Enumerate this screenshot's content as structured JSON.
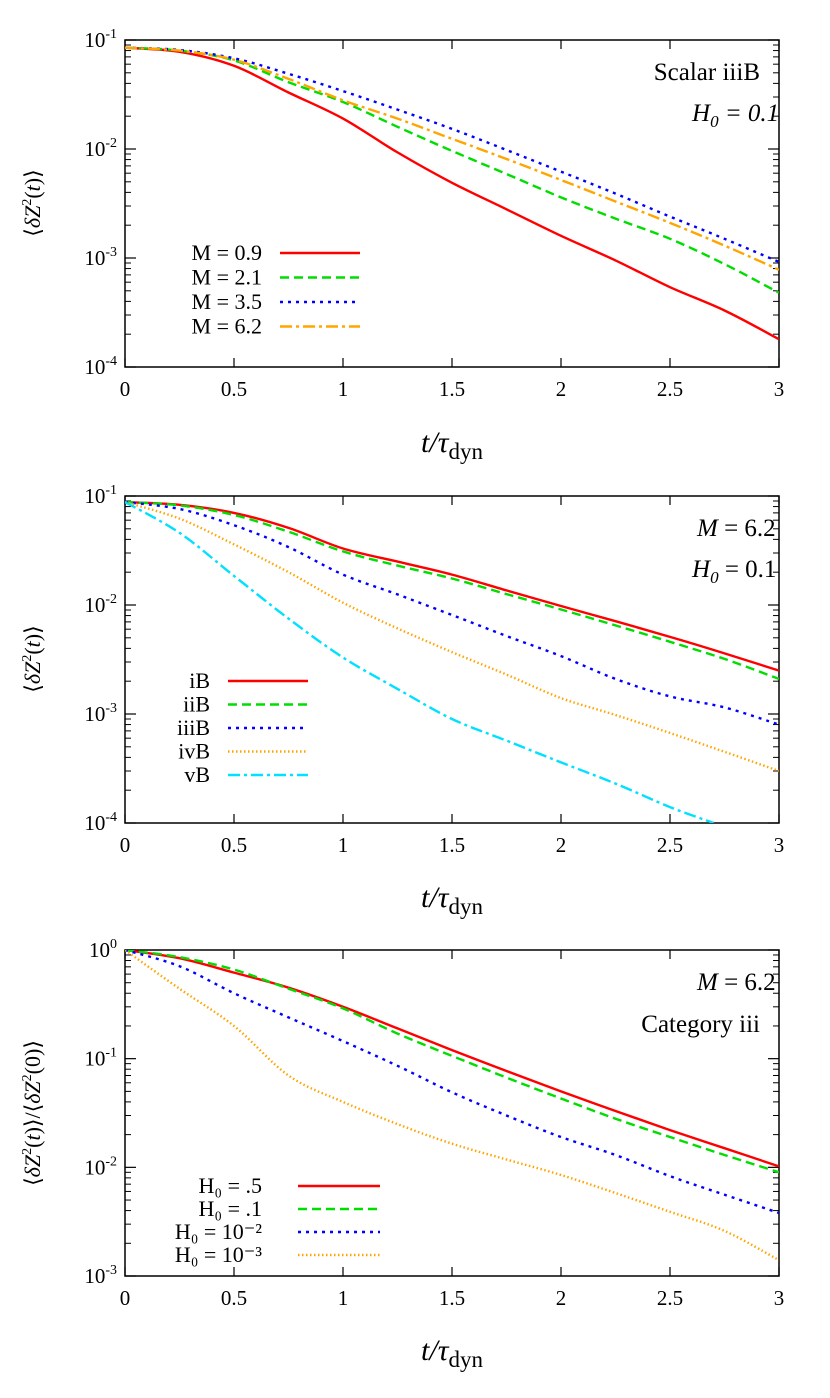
{
  "chart_data": [
    {
      "type": "line",
      "yscale": "log",
      "xlim": [
        0,
        3
      ],
      "ylim": [
        0.0001,
        0.1
      ],
      "xticks": [
        "0",
        "0.5",
        "1",
        "1.5",
        "2",
        "2.5",
        "3"
      ],
      "ylabel": "⟨δZ²(t)⟩",
      "xlabel": "t/τdyn",
      "annotation": [
        "Scalar iiiB",
        "H₀ = 0.1"
      ],
      "legend_position": "bottom-left",
      "series": [
        {
          "name": "M = 0.9",
          "color": "#ff0000",
          "dash": "solid",
          "x": [
            0,
            0.25,
            0.5,
            0.75,
            1.0,
            1.25,
            1.5,
            1.75,
            2.0,
            2.25,
            2.5,
            2.75,
            3.0
          ],
          "y": [
            0.085,
            0.078,
            0.058,
            0.033,
            0.019,
            0.0093,
            0.0049,
            0.0028,
            0.0016,
            0.00095,
            0.00054,
            0.00033,
            0.00018
          ]
        },
        {
          "name": "M = 2.1",
          "color": "#00dd00",
          "dash": "dashed",
          "x": [
            0,
            0.25,
            0.5,
            0.75,
            1.0,
            1.25,
            1.5,
            1.75,
            2.0,
            2.25,
            2.5,
            2.75,
            3.0
          ],
          "y": [
            0.085,
            0.08,
            0.065,
            0.041,
            0.027,
            0.016,
            0.0096,
            0.0059,
            0.0036,
            0.0023,
            0.0015,
            0.00088,
            0.00048
          ]
        },
        {
          "name": "M = 3.5",
          "color": "#0000ff",
          "dash": "dotted",
          "x": [
            0,
            0.25,
            0.5,
            0.75,
            1.0,
            1.25,
            1.5,
            1.75,
            2.0,
            2.25,
            2.5,
            2.75,
            3.0
          ],
          "y": [
            0.085,
            0.081,
            0.068,
            0.049,
            0.034,
            0.023,
            0.0153,
            0.0098,
            0.0062,
            0.0039,
            0.0024,
            0.0015,
            0.00092
          ]
        },
        {
          "name": "M = 6.2",
          "color": "#ffa500",
          "dash": "dashdot",
          "x": [
            0,
            0.25,
            0.5,
            0.75,
            1.0,
            1.25,
            1.5,
            1.75,
            2.0,
            2.25,
            2.5,
            2.75,
            3.0
          ],
          "y": [
            0.085,
            0.08,
            0.066,
            0.044,
            0.028,
            0.019,
            0.0124,
            0.0081,
            0.0052,
            0.0033,
            0.0021,
            0.0013,
            0.00078
          ]
        }
      ]
    },
    {
      "type": "line",
      "yscale": "log",
      "xlim": [
        0,
        3
      ],
      "ylim": [
        0.0001,
        0.1
      ],
      "xticks": [
        "0",
        "0.5",
        "1",
        "1.5",
        "2",
        "2.5",
        "3"
      ],
      "ylabel": "⟨δZ²(t)⟩",
      "xlabel": "t/τdyn",
      "annotation": [
        "M = 6.2",
        "H₀ = 0.1"
      ],
      "legend_position": "bottom-left",
      "series": [
        {
          "name": "iB",
          "color": "#ff0000",
          "dash": "solid",
          "x": [
            0,
            0.25,
            0.5,
            0.75,
            1.0,
            1.25,
            1.5,
            1.75,
            2.0,
            2.25,
            2.5,
            2.75,
            3.0
          ],
          "y": [
            0.088,
            0.083,
            0.07,
            0.051,
            0.033,
            0.025,
            0.019,
            0.0136,
            0.0098,
            0.0071,
            0.0051,
            0.0036,
            0.0025
          ]
        },
        {
          "name": "iiB",
          "color": "#00dd00",
          "dash": "dashed",
          "x": [
            0,
            0.25,
            0.5,
            0.75,
            1.0,
            1.25,
            1.5,
            1.75,
            2.0,
            2.25,
            2.5,
            2.75,
            3.0
          ],
          "y": [
            0.088,
            0.082,
            0.067,
            0.047,
            0.031,
            0.023,
            0.0175,
            0.0126,
            0.0091,
            0.0065,
            0.0046,
            0.0032,
            0.0021
          ]
        },
        {
          "name": "iiiB",
          "color": "#0000ff",
          "dash": "dotted",
          "x": [
            0,
            0.25,
            0.5,
            0.75,
            1.0,
            1.25,
            1.5,
            1.75,
            2.0,
            2.25,
            2.5,
            2.75,
            3.0
          ],
          "y": [
            0.088,
            0.076,
            0.054,
            0.034,
            0.019,
            0.0125,
            0.0081,
            0.0052,
            0.0034,
            0.0021,
            0.00145,
            0.00115,
            0.0008
          ]
        },
        {
          "name": "ivB",
          "color": "#ffa500",
          "dash": "finedot",
          "x": [
            0,
            0.25,
            0.5,
            0.75,
            1.0,
            1.25,
            1.5,
            1.75,
            2.0,
            2.25,
            2.5,
            2.75,
            3.0
          ],
          "y": [
            0.088,
            0.062,
            0.036,
            0.02,
            0.0105,
            0.0061,
            0.0037,
            0.0023,
            0.0014,
            0.00098,
            0.00067,
            0.00045,
            0.0003
          ]
        },
        {
          "name": "vB",
          "color": "#00e0ff",
          "dash": "dashdot",
          "x": [
            0,
            0.25,
            0.5,
            0.75,
            1.0,
            1.25,
            1.5,
            1.75,
            2.0,
            2.25,
            2.5,
            2.7
          ],
          "y": [
            0.088,
            0.046,
            0.0185,
            0.0075,
            0.0033,
            0.0017,
            0.0009,
            0.00057,
            0.00036,
            0.00023,
            0.00014,
            0.0001
          ]
        }
      ]
    },
    {
      "type": "line",
      "yscale": "log",
      "xlim": [
        0,
        3
      ],
      "ylim": [
        0.001,
        1
      ],
      "xticks": [
        "0",
        "0.5",
        "1",
        "1.5",
        "2",
        "2.5",
        "3"
      ],
      "ylabel": "⟨δZ²(t)⟩/⟨δZ²(0)⟩",
      "xlabel": "t/τdyn",
      "annotation": [
        "M = 6.2",
        "Category iii"
      ],
      "legend_position": "bottom-left",
      "series": [
        {
          "name": "H₀ = .5",
          "color": "#ff0000",
          "dash": "solid",
          "x": [
            0,
            0.25,
            0.5,
            0.75,
            1.0,
            1.25,
            1.5,
            1.75,
            2.0,
            2.25,
            2.5,
            2.75,
            3.0
          ],
          "y": [
            1.0,
            0.84,
            0.62,
            0.45,
            0.3,
            0.19,
            0.12,
            0.077,
            0.05,
            0.033,
            0.022,
            0.015,
            0.0102
          ]
        },
        {
          "name": "H₀ = .1",
          "color": "#00dd00",
          "dash": "dashed",
          "x": [
            0,
            0.25,
            0.5,
            0.75,
            1.0,
            1.25,
            1.5,
            1.75,
            2.0,
            2.25,
            2.5,
            2.75,
            3.0
          ],
          "y": [
            1.0,
            0.86,
            0.66,
            0.44,
            0.29,
            0.17,
            0.106,
            0.067,
            0.043,
            0.028,
            0.019,
            0.013,
            0.009
          ]
        },
        {
          "name": "H₀ = 10⁻²",
          "color": "#0000ff",
          "dash": "dotted",
          "x": [
            0,
            0.25,
            0.5,
            0.75,
            1.0,
            1.25,
            1.5,
            1.75,
            2.0,
            2.25,
            2.5,
            2.75,
            3.0
          ],
          "y": [
            1.0,
            0.71,
            0.4,
            0.24,
            0.145,
            0.086,
            0.049,
            0.03,
            0.019,
            0.013,
            0.0083,
            0.0056,
            0.0038
          ]
        },
        {
          "name": "H₀ = 10⁻³",
          "color": "#ffa500",
          "dash": "finedot",
          "x": [
            0,
            0.25,
            0.5,
            0.75,
            1.0,
            1.25,
            1.5,
            1.75,
            2.0,
            2.25,
            2.5,
            2.75,
            3.0
          ],
          "y": [
            1.0,
            0.44,
            0.2,
            0.07,
            0.04,
            0.025,
            0.0165,
            0.0118,
            0.0085,
            0.0058,
            0.0039,
            0.0026,
            0.0014
          ]
        }
      ]
    }
  ]
}
